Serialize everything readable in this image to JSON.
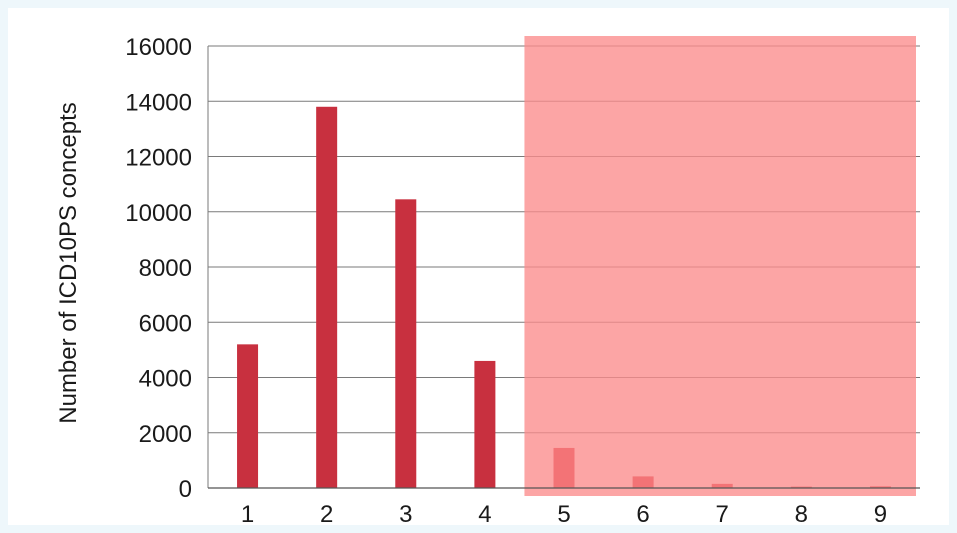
{
  "chart_data": {
    "type": "bar",
    "categories": [
      "1",
      "2",
      "3",
      "4",
      "5",
      "6",
      "7",
      "8",
      "9"
    ],
    "values": [
      5200,
      13800,
      10450,
      4600,
      1450,
      420,
      150,
      50,
      60
    ],
    "xlabel": "",
    "ylabel": "Number of ICD10PS concepts",
    "ylim": [
      0,
      16000
    ],
    "yticks": [
      "0",
      "2000",
      "4000",
      "6000",
      "8000",
      "10000",
      "12000",
      "14000",
      "16000"
    ],
    "grid": true,
    "highlight": {
      "from_category": "5",
      "to_category": "9",
      "color": "#fb8c8c"
    },
    "colors": {
      "bar": "#c8303f",
      "bar_highlighted": "#d41f2b",
      "grid": "#7a7a7a"
    }
  }
}
